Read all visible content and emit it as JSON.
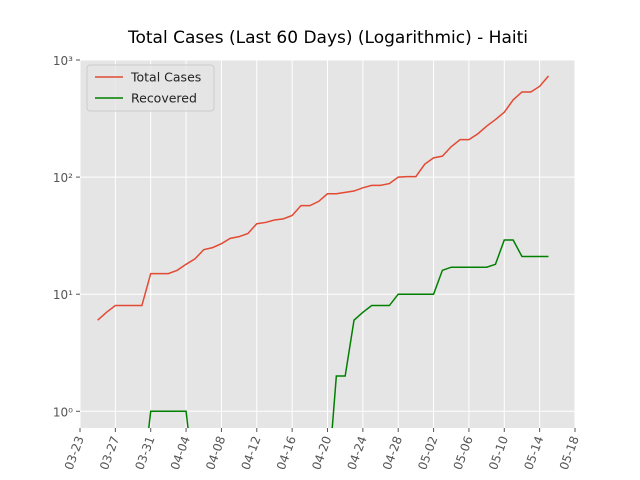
{
  "chart_data": {
    "type": "line",
    "title": "Total Cases (Last 60 Days) (Logarithmic) - Haiti",
    "x": [
      "03-25",
      "03-26",
      "03-27",
      "03-28",
      "03-29",
      "03-30",
      "03-31",
      "04-01",
      "04-02",
      "04-03",
      "04-04",
      "04-05",
      "04-06",
      "04-07",
      "04-08",
      "04-09",
      "04-10",
      "04-11",
      "04-12",
      "04-13",
      "04-14",
      "04-15",
      "04-16",
      "04-17",
      "04-18",
      "04-19",
      "04-20",
      "04-21",
      "04-22",
      "04-23",
      "04-24",
      "04-25",
      "04-26",
      "04-27",
      "04-28",
      "04-29",
      "04-30",
      "05-01",
      "05-02",
      "05-03",
      "05-04",
      "05-05",
      "05-06",
      "05-07",
      "05-08",
      "05-09",
      "05-10",
      "05-11",
      "05-12",
      "05-13",
      "05-14",
      "05-15"
    ],
    "series": [
      {
        "name": "Total Cases",
        "color": "#e24a33",
        "values": [
          6,
          7,
          8,
          8,
          8,
          8,
          15,
          15,
          15,
          16,
          18,
          20,
          24,
          25,
          27,
          30,
          31,
          33,
          40,
          41,
          43,
          44,
          47,
          57,
          57,
          62,
          72,
          72,
          74,
          76,
          81,
          85,
          85,
          88,
          100,
          101,
          101,
          129,
          146,
          151,
          182,
          209,
          209,
          234,
          272,
          310,
          358,
          456,
          533,
          533,
          596,
          730
        ]
      },
      {
        "name": "Recovered",
        "color": "#008000",
        "values": [
          0,
          0,
          0,
          0,
          0,
          0,
          1,
          1,
          1,
          1,
          1,
          0,
          0,
          0,
          0,
          0,
          0,
          0,
          0,
          0,
          0,
          0,
          0,
          0,
          0,
          0,
          0,
          2,
          2,
          6,
          7,
          8,
          8,
          8,
          10,
          10,
          10,
          10,
          10,
          16,
          17,
          17,
          17,
          17,
          17,
          18,
          29,
          29,
          21,
          21,
          21,
          21
        ]
      }
    ],
    "xlim": [
      "03-23",
      "05-18"
    ],
    "xticks": [
      "03-23",
      "03-27",
      "03-31",
      "04-04",
      "04-08",
      "04-12",
      "04-16",
      "04-20",
      "04-24",
      "04-28",
      "05-02",
      "05-06",
      "05-10",
      "05-14",
      "05-18"
    ],
    "ylim": [
      0.72,
      1000
    ],
    "yticks": [
      {
        "value": 1,
        "label": "10⁰"
      },
      {
        "value": 10,
        "label": "10¹"
      },
      {
        "value": 100,
        "label": "10²"
      },
      {
        "value": 1000,
        "label": "10³"
      }
    ],
    "yscale": "log",
    "grid": true,
    "legend": "upper left"
  }
}
